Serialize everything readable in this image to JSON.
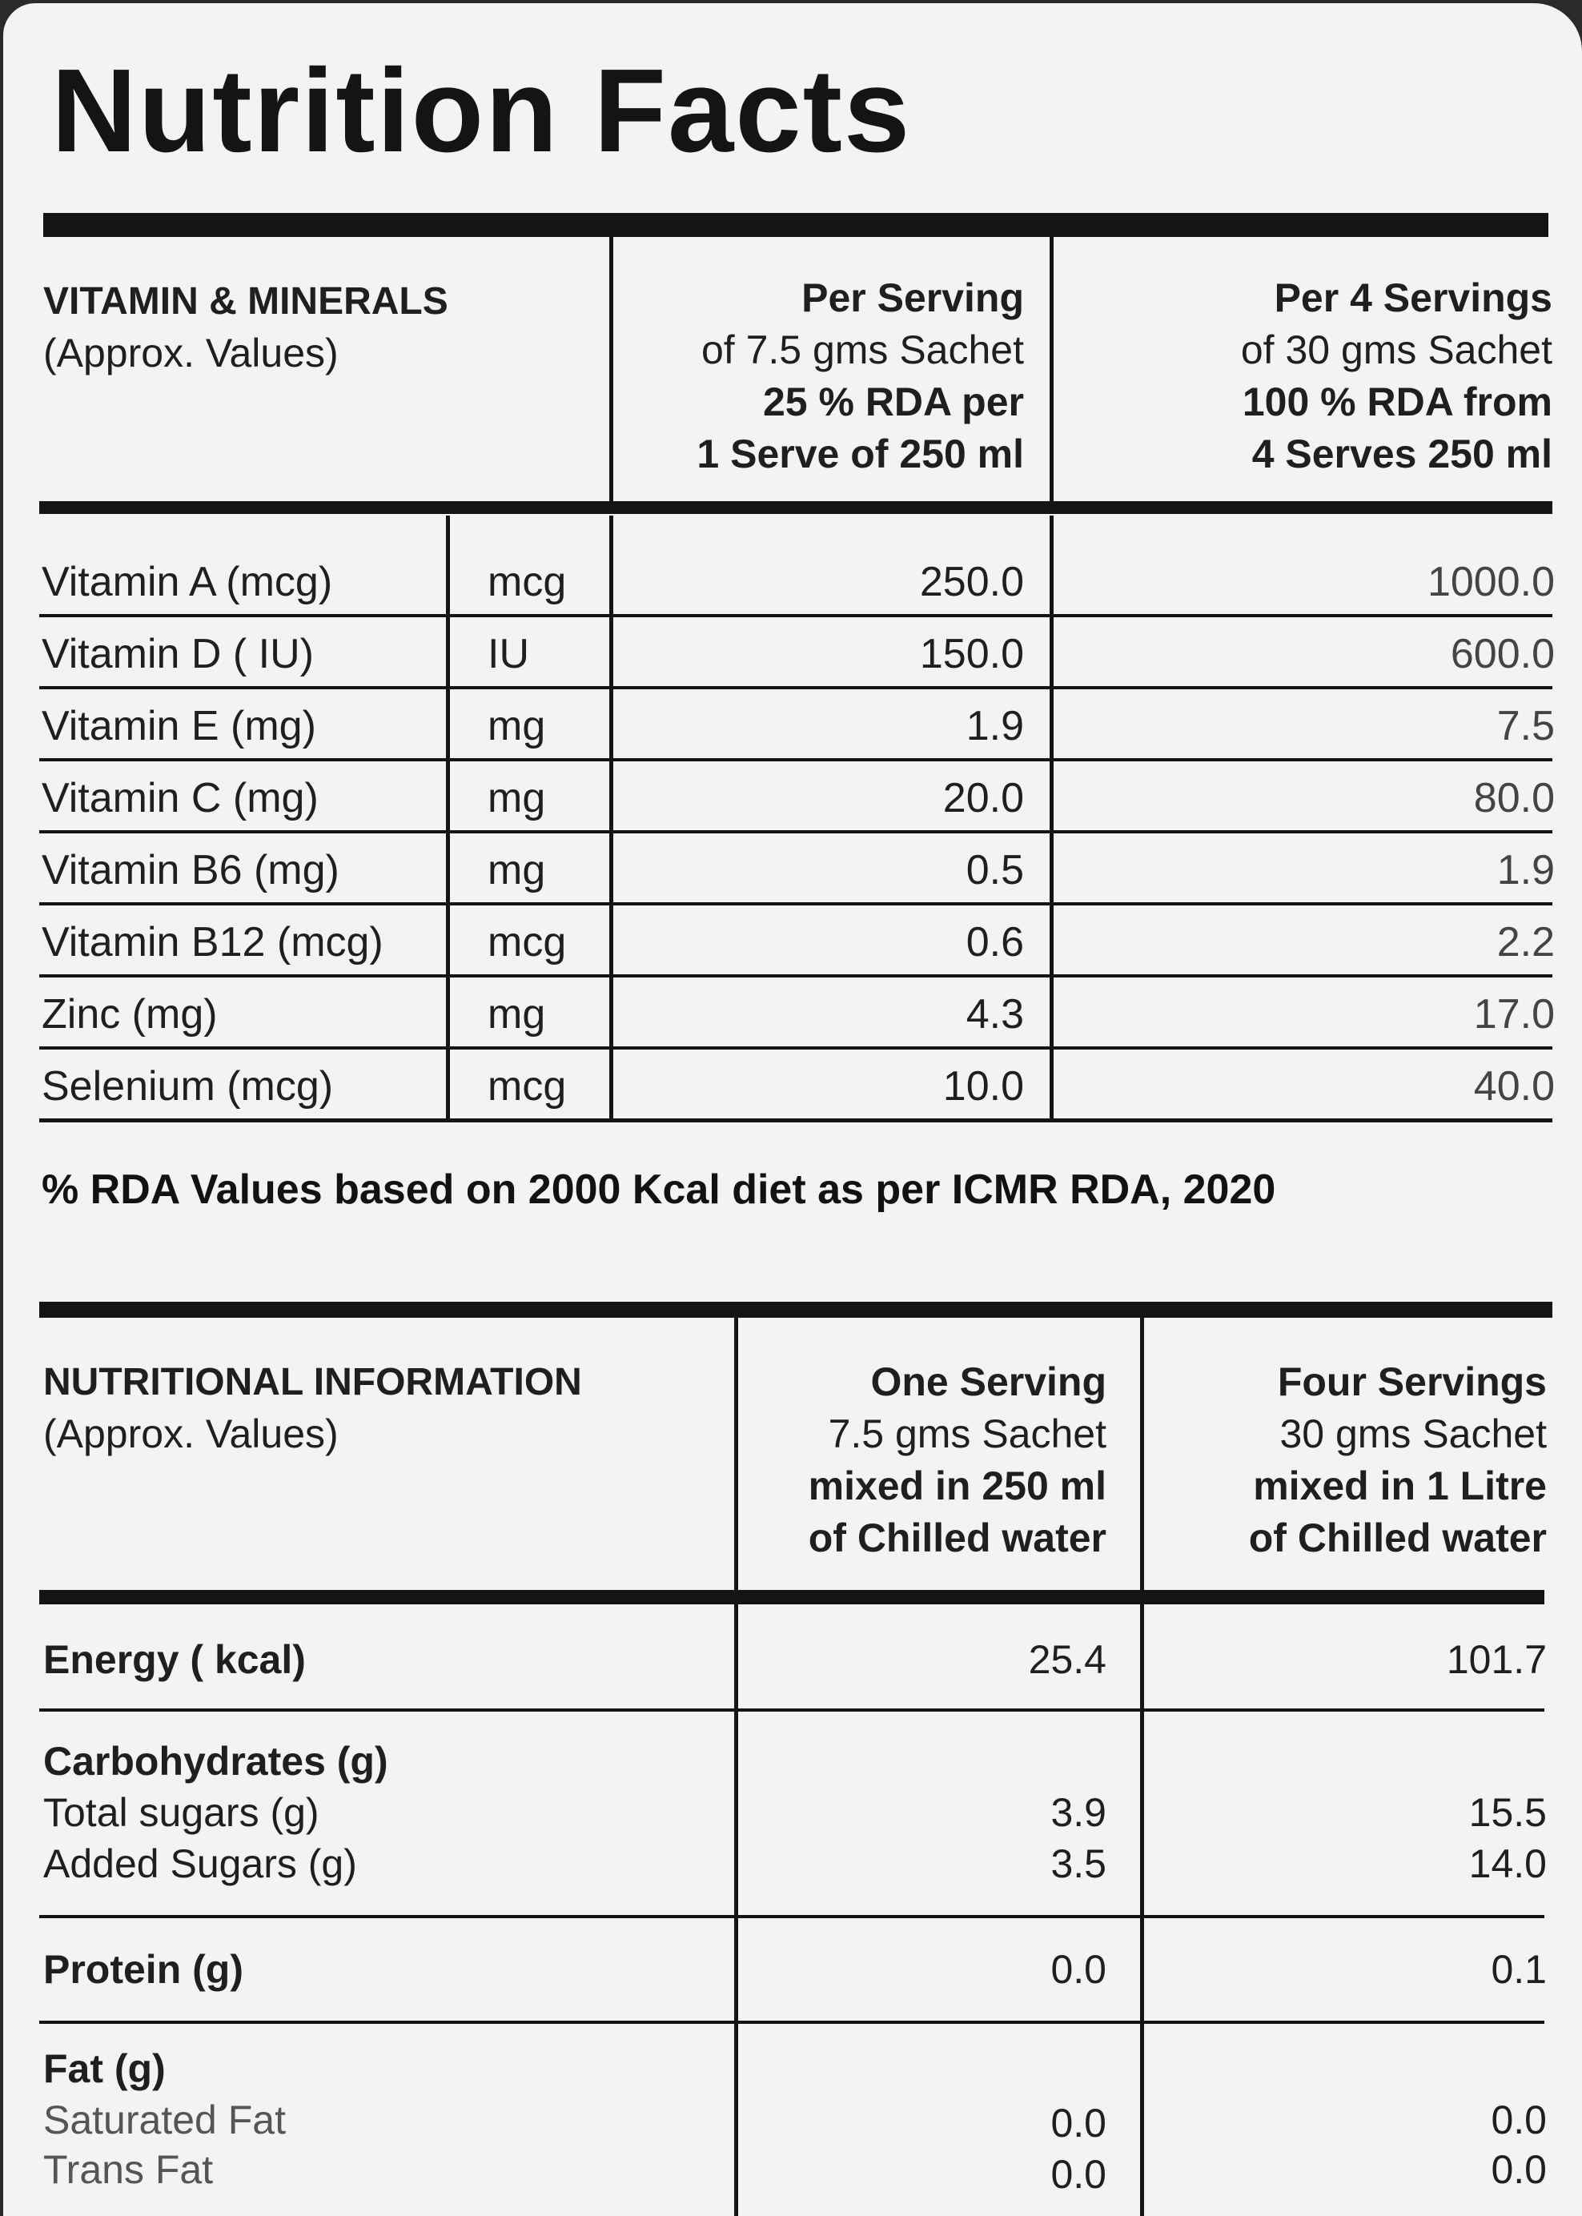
{
  "title": "Nutrition Facts",
  "vitamins": {
    "heading": "VITAMIN & MINERALS",
    "subheading": "(Approx. Values)",
    "col1": [
      "Per Serving",
      "of 7.5 gms Sachet",
      "25 % RDA per",
      "1 Serve of 250 ml"
    ],
    "col2": [
      "Per 4 Servings",
      "of 30 gms Sachet",
      "100 % RDA from",
      "4 Serves 250 ml"
    ],
    "rows": [
      {
        "name": "Vitamin A (mcg)",
        "unit": "mcg",
        "per_serving": "250.0",
        "per_4": "1000.0"
      },
      {
        "name": "Vitamin D ( IU)",
        "unit": "IU",
        "per_serving": "150.0",
        "per_4": "600.0"
      },
      {
        "name": "Vitamin E (mg)",
        "unit": "mg",
        "per_serving": "1.9",
        "per_4": "7.5"
      },
      {
        "name": "Vitamin C (mg)",
        "unit": "mg",
        "per_serving": "20.0",
        "per_4": "80.0"
      },
      {
        "name": "Vitamin B6 (mg)",
        "unit": "mg",
        "per_serving": "0.5",
        "per_4": "1.9"
      },
      {
        "name": "Vitamin B12 (mcg)",
        "unit": "mcg",
        "per_serving": "0.6",
        "per_4": "2.2"
      },
      {
        "name": "Zinc (mg)",
        "unit": "mg",
        "per_serving": "4.3",
        "per_4": "17.0"
      },
      {
        "name": "Selenium (mcg)",
        "unit": "mcg",
        "per_serving": "10.0",
        "per_4": "40.0"
      }
    ],
    "footnote": "% RDA Values based on 2000 Kcal diet as per ICMR RDA, 2020"
  },
  "nutrition": {
    "heading": "NUTRITIONAL INFORMATION",
    "subheading": "(Approx. Values)",
    "col1": [
      "One Serving",
      "7.5 gms Sachet",
      "mixed in 250 ml",
      "of Chilled water"
    ],
    "col2": [
      "Four Servings",
      "30 gms Sachet",
      "mixed in 1 Litre",
      "of Chilled water"
    ],
    "energy": {
      "name": "Energy ( kcal)",
      "one": "25.4",
      "four": "101.7"
    },
    "carbs": {
      "name": "Carbohydrates (g)",
      "sub": [
        {
          "name": "Total sugars (g)",
          "one": "3.9",
          "four": "15.5"
        },
        {
          "name": "Added Sugars (g)",
          "one": "3.5",
          "four": "14.0"
        }
      ]
    },
    "protein": {
      "name": "Protein (g)",
      "one": "0.0",
      "four": "0.1"
    },
    "fat": {
      "name": "Fat (g)",
      "sub": [
        {
          "name": "Saturated Fat",
          "one": "0.0",
          "four": "0.0"
        },
        {
          "name": "Trans Fat",
          "one": "0.0",
          "four": "0.0"
        }
      ]
    }
  }
}
